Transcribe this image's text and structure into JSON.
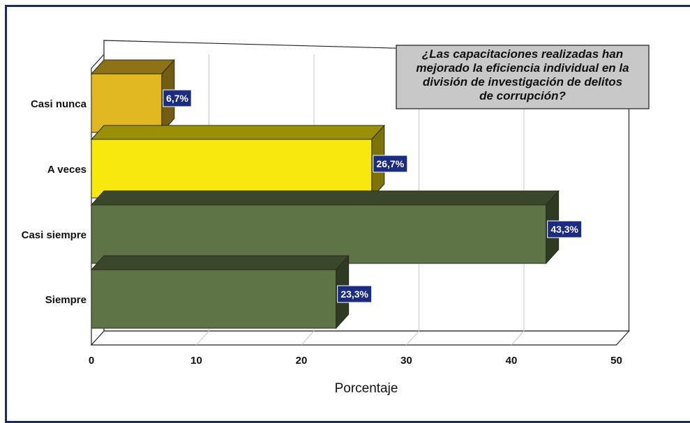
{
  "chart_data": {
    "type": "bar",
    "orientation": "horizontal",
    "style": "3d",
    "title": "¿Las capacitaciones realizadas han mejorado la eficiencia individual en la división de investigación de delitos de corrupción?",
    "title_lines": [
      "¿Las capacitaciones realizadas han",
      "mejorado la eficiencia individual en la",
      "división de investigación de delitos",
      "de corrupción?"
    ],
    "xlabel": "Porcentaje",
    "ylabel": "",
    "xlim": [
      0,
      50
    ],
    "x_ticks": [
      0,
      10,
      20,
      30,
      40,
      50
    ],
    "grid": true,
    "legend": "none",
    "categories": [
      "Casi nunca",
      "A veces",
      "Casi siempre",
      "Siempre"
    ],
    "values": [
      6.7,
      26.7,
      43.3,
      23.3
    ],
    "data_labels": [
      "6,7%",
      "26,7%",
      "43,3%",
      "23,3%"
    ],
    "colors": [
      "#e2b822",
      "#f7e80d",
      "#5e7346",
      "#5e7346"
    ],
    "label_box_color": "#1b2b7f"
  }
}
